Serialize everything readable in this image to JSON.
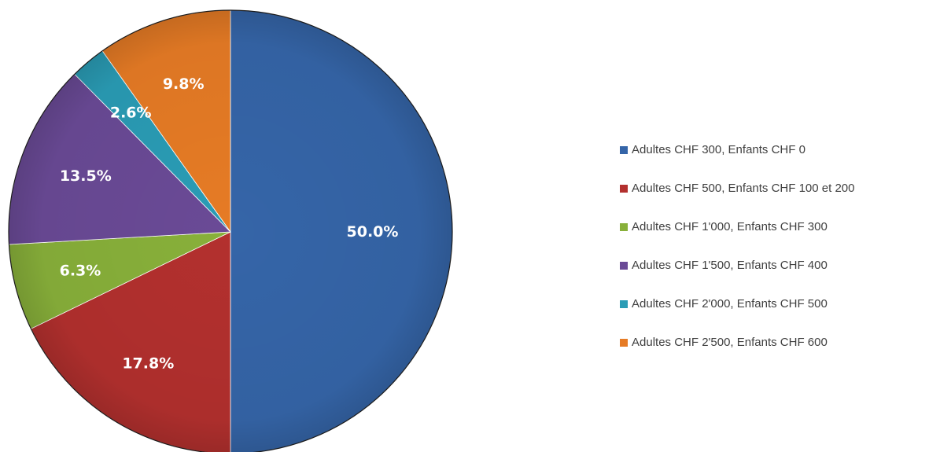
{
  "chart_data": {
    "type": "pie",
    "categories": [
      "Adultes CHF 300, Enfants CHF 0",
      "Adultes CHF 500, Enfants CHF 100 et 200",
      "Adultes CHF 1'000, Enfants CHF 300",
      "Adultes CHF 1'500, Enfants CHF 400",
      "Adultes CHF 2'000, Enfants CHF 500",
      "Adultes CHF 2'500, Enfants CHF 600"
    ],
    "values": [
      50.0,
      17.8,
      6.3,
      13.5,
      2.6,
      9.8
    ],
    "data_labels": [
      "50.0%",
      "17.8%",
      "6.3%",
      "13.5%",
      "2.6%",
      "9.8%"
    ],
    "colors": [
      "#3565a8",
      "#b3302e",
      "#88b03a",
      "#6a4a96",
      "#2a9cb5",
      "#e67b25"
    ],
    "start_angle": "12 o'clock",
    "direction": "clockwise",
    "legend_position": "right"
  }
}
